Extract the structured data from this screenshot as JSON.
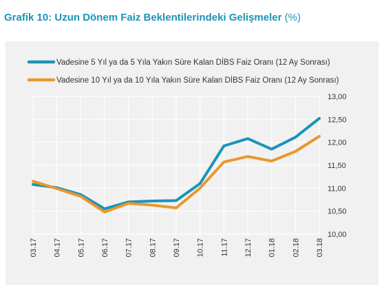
{
  "title": {
    "main": "Grafik 10: Uzun Dönem Faiz Beklentilerindeki Gelişmeler",
    "unit": "(%)"
  },
  "colors": {
    "series1": "#1a94b8",
    "series2": "#e8982e",
    "band": "#f1f1f1",
    "grid": "#ffffff"
  },
  "chart_data": {
    "type": "line",
    "categories": [
      "03.17",
      "04.17",
      "05.17",
      "06.17",
      "07.17",
      "08.17",
      "09.17",
      "10.17",
      "11.17",
      "12.17",
      "01.18",
      "02.18",
      "03.18"
    ],
    "series": [
      {
        "name": "Vadesine 5 Yıl ya da 5 Yıla Yakın Süre Kalan DİBS Faiz Oranı (12 Ay Sonrası)",
        "values": [
          11.08,
          11.01,
          10.86,
          10.55,
          10.7,
          10.72,
          10.73,
          11.1,
          11.92,
          12.08,
          11.85,
          12.11,
          12.52
        ]
      },
      {
        "name": "Vadesine 10 Yıl ya da 10 Yıla Yakın Süre Kalan DİBS Faiz Oranı (12 Ay Sonrası)",
        "values": [
          11.15,
          10.99,
          10.82,
          10.48,
          10.67,
          10.63,
          10.57,
          11.0,
          11.57,
          11.69,
          11.59,
          11.8,
          12.13
        ]
      }
    ],
    "ylim": [
      10.0,
      13.0
    ],
    "yticks": [
      "10,00",
      "10,50",
      "11,00",
      "11,50",
      "12,00",
      "12,50",
      "13,00"
    ],
    "grid": true,
    "legend": "top",
    "y_axis_side": "right"
  }
}
